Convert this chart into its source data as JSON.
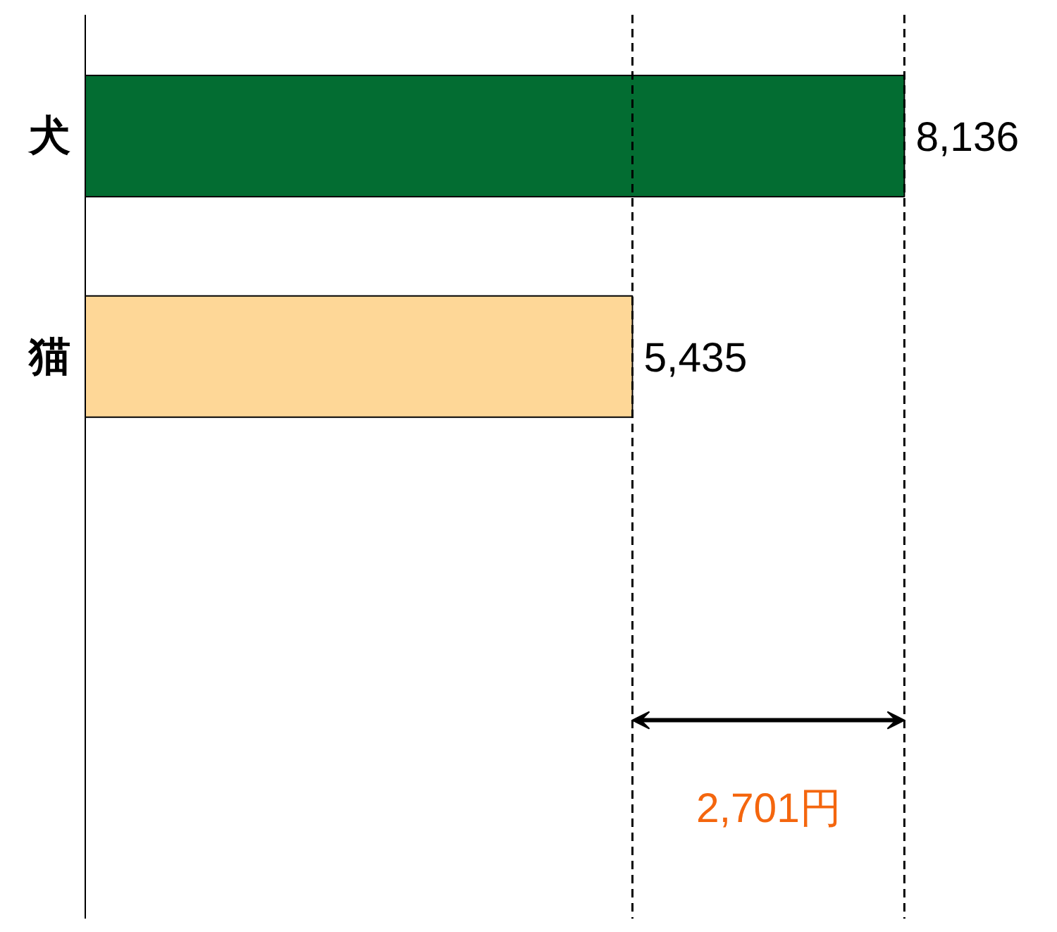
{
  "chart_data": {
    "type": "bar",
    "orientation": "horizontal",
    "categories": [
      "犬",
      "猫"
    ],
    "values": [
      8136,
      5435
    ],
    "colors": [
      "#036d32",
      "#fed797"
    ],
    "value_labels": [
      "8,136",
      "5,435"
    ],
    "ref_lines": [
      {
        "axis": "x",
        "value": 8136,
        "line_style": "dashed",
        "color": "#000000"
      },
      {
        "axis": "x",
        "value": 5435,
        "line_style": "dashed",
        "color": "#000000"
      }
    ],
    "annotations": [
      "2,701円"
    ],
    "tick_labels": "y",
    "grid": false
  }
}
